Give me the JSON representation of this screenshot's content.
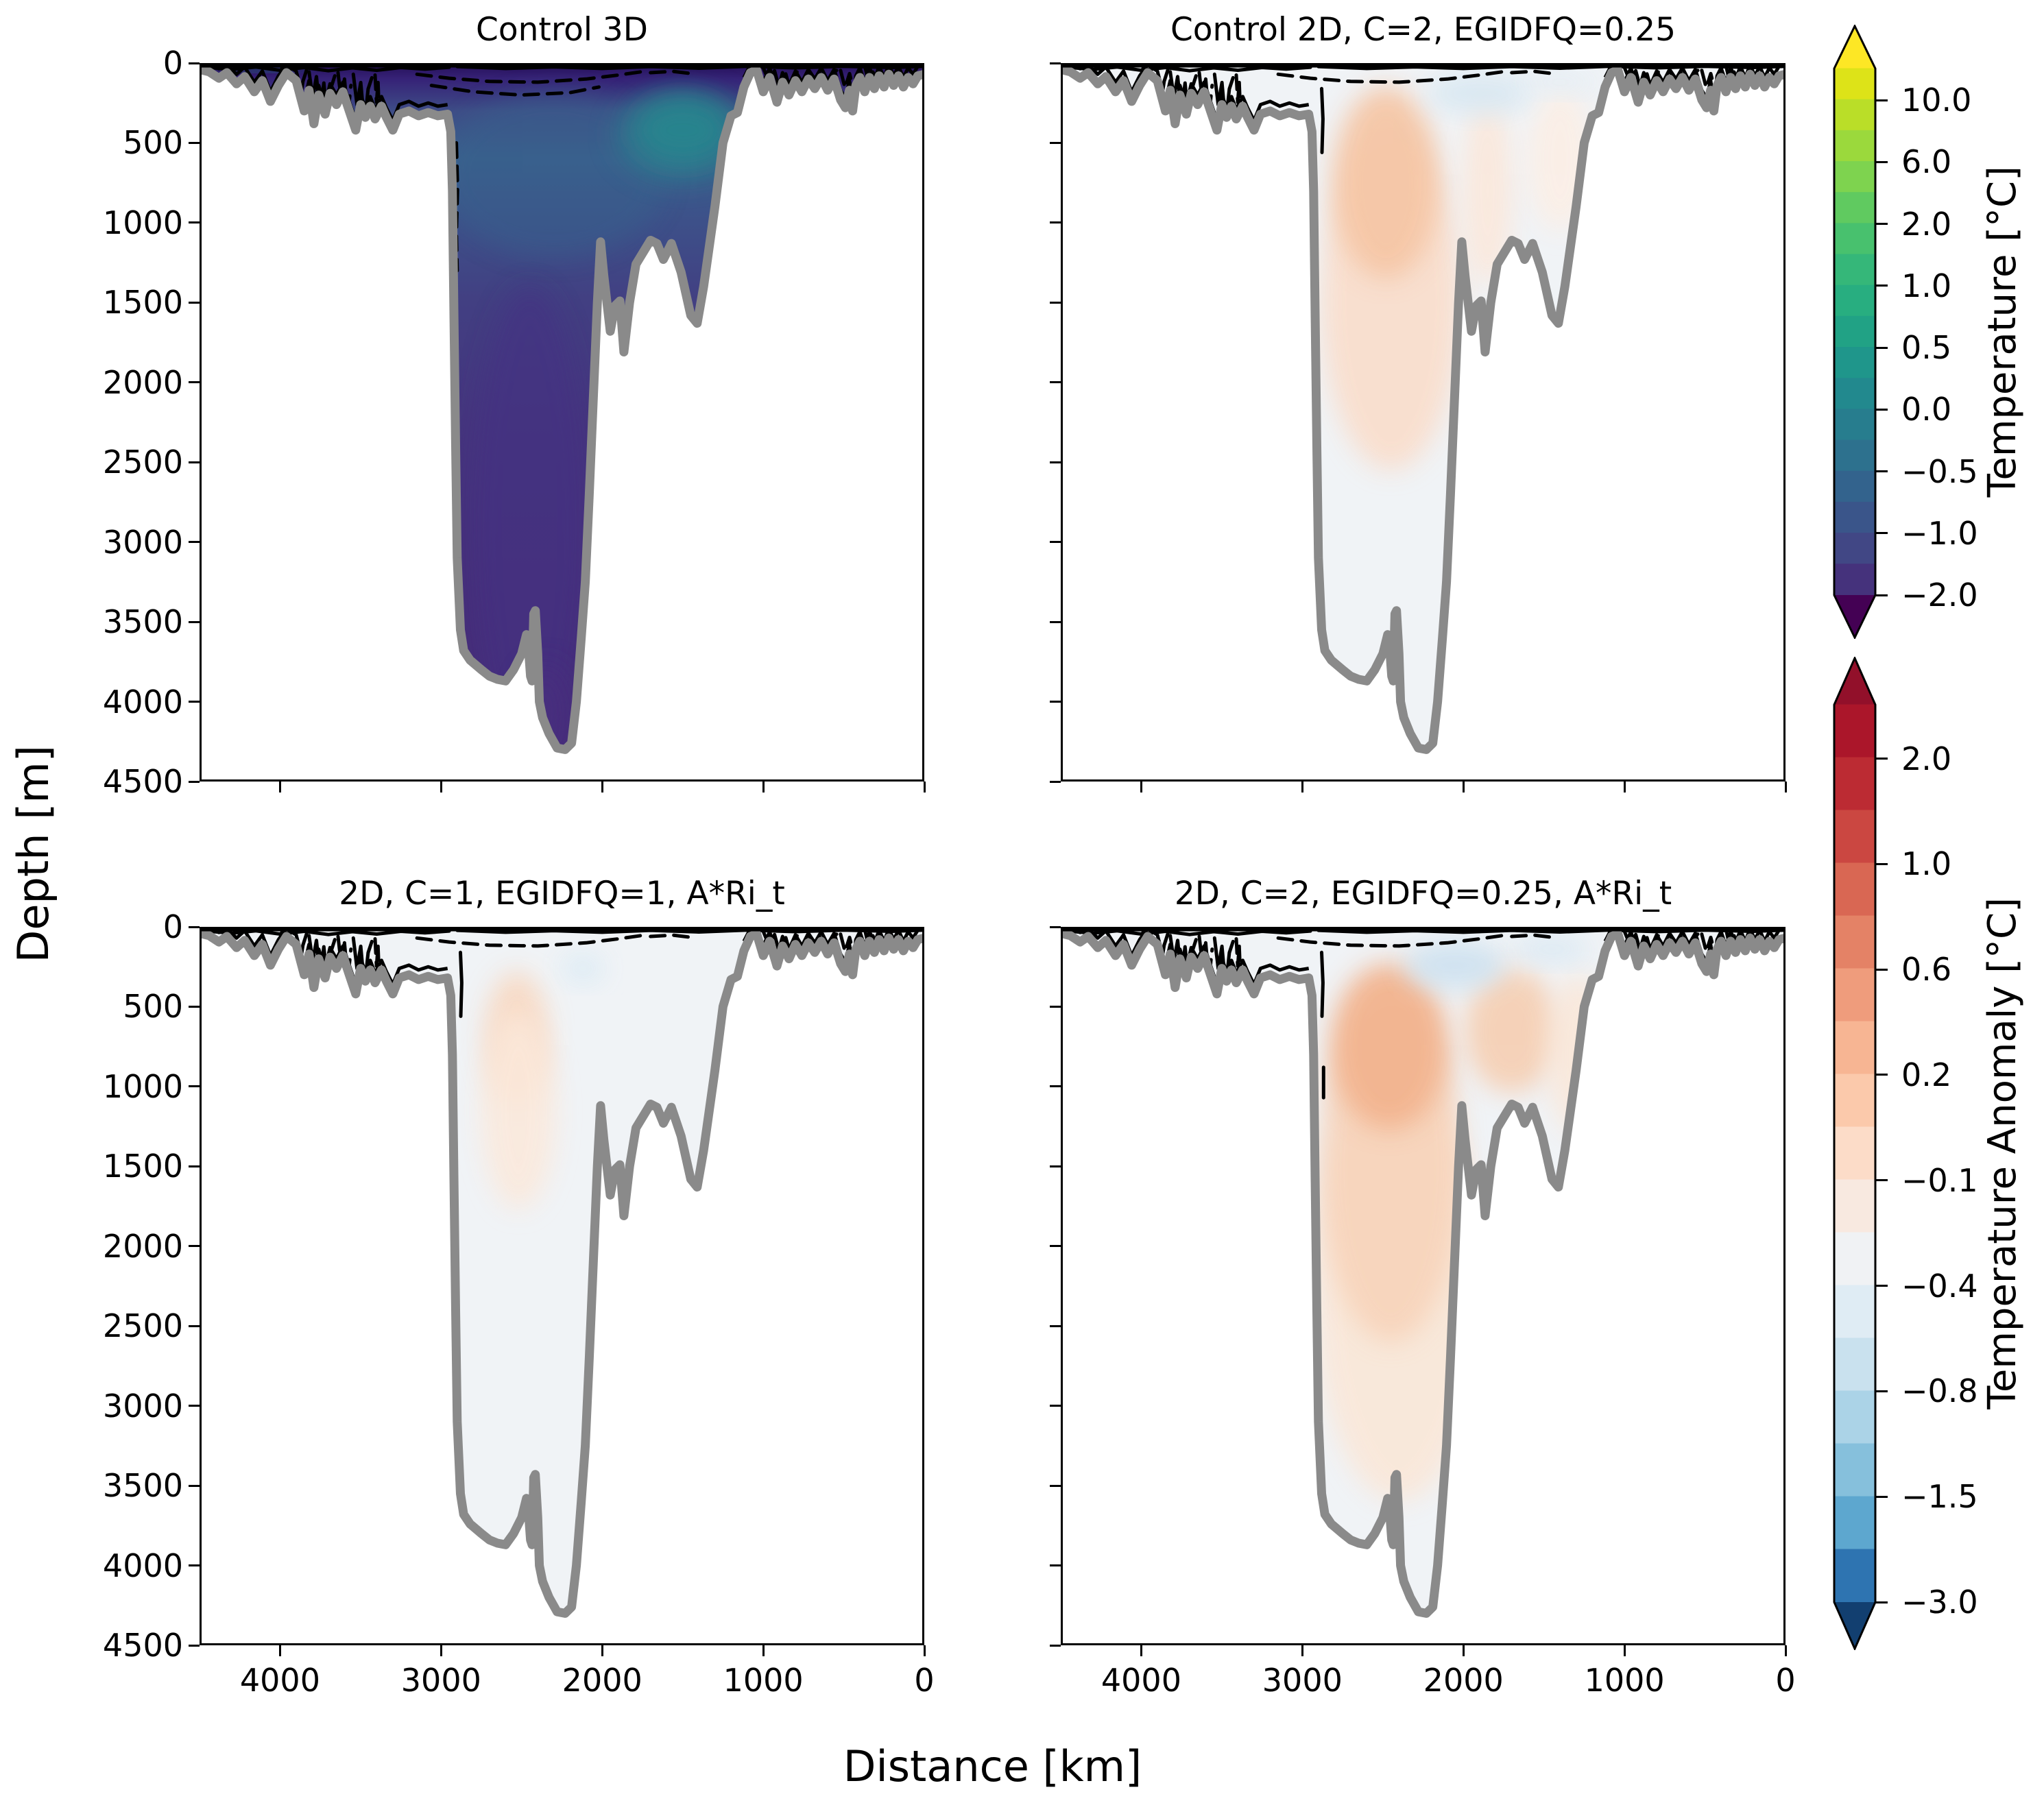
{
  "figure": {
    "background": "#ffffff"
  },
  "axes": {
    "xlabel": "Distance [km]",
    "ylabel": "Depth [m]",
    "x_ticks": [
      "4000",
      "3000",
      "2000",
      "1000",
      "0"
    ],
    "x_tick_values": [
      4000,
      3000,
      2000,
      1000,
      0
    ],
    "x_range_km": [
      4500,
      0
    ],
    "y_ticks": [
      "0",
      "500",
      "1000",
      "1500",
      "2000",
      "2500",
      "3000",
      "3500",
      "4000",
      "4500"
    ],
    "y_tick_values": [
      0,
      500,
      1000,
      1500,
      2000,
      2500,
      3000,
      3500,
      4000,
      4500
    ],
    "y_range_m": [
      0,
      4500
    ]
  },
  "panels": [
    {
      "title": "Control 3D",
      "field": "temperature",
      "colorbar": "Temperature [°C]"
    },
    {
      "title": "Control 2D, C=2, EGIDFQ=0.25",
      "field": "temperature_anomaly",
      "colorbar": "Temperature Anomaly [°C]"
    },
    {
      "title": "2D, C=1, EGIDFQ=1, A*Ri_t",
      "field": "temperature_anomaly",
      "colorbar": "Temperature Anomaly [°C]"
    },
    {
      "title": "2D, C=2, EGIDFQ=0.25, A*Ri_t",
      "field": "temperature_anomaly",
      "colorbar": "Temperature Anomaly [°C]"
    }
  ],
  "colorbars": [
    {
      "label": "Temperature [°C]",
      "ticks": [
        "10.0",
        "6.0",
        "2.0",
        "1.0",
        "0.5",
        "0.0",
        "−0.5",
        "−1.0",
        "−2.0"
      ],
      "tick_values": [
        10.0,
        6.0,
        2.0,
        1.0,
        0.5,
        0.0,
        -0.5,
        -1.0,
        -2.0
      ],
      "colormap": "viridis",
      "extend": "both",
      "over_color": "#fde725",
      "under_color": "#440154",
      "band_colors": [
        "#dde318",
        "#bade28",
        "#9bd93c",
        "#7ed34f",
        "#60ca60",
        "#48c16e",
        "#35b779",
        "#28ae80",
        "#21a285",
        "#1f968b",
        "#22898e",
        "#277d8e",
        "#2d718e",
        "#33638d",
        "#3a558a",
        "#414785",
        "#45327c"
      ]
    },
    {
      "label": "Temperature Anomaly [°C]",
      "ticks": [
        "2.0",
        "1.0",
        "0.6",
        "0.2",
        "−0.1",
        "−0.4",
        "−0.8",
        "−1.5",
        "−3.0"
      ],
      "tick_values": [
        2.0,
        1.0,
        0.6,
        0.2,
        -0.1,
        -0.4,
        -0.8,
        -1.5,
        -3.0
      ],
      "colormap": "RdBu_r",
      "extend": "both",
      "over_color": "#92102a",
      "under_color": "#123f70",
      "band_colors": [
        "#ab162a",
        "#bc2b33",
        "#cb4741",
        "#d96753",
        "#e48266",
        "#ef9c7c",
        "#f7b593",
        "#fbc9ab",
        "#fcdcc8",
        "#f8e9e0",
        "#f0f2f4",
        "#dfecf4",
        "#c9e1ee",
        "#abd3e7",
        "#86c0dc",
        "#5da7cf",
        "#2e74b1"
      ]
    }
  ],
  "styles": {
    "bathymetry_color": "#8a8a8a",
    "contour_color": "#000000",
    "seafloor_fill": "#ffffff",
    "anomaly_bg": "#f0f3f6",
    "spine_color": "#000000"
  },
  "chart_data": {
    "type": "heatmap",
    "subtype": "filled_contour_ocean_sections",
    "layout": "2x2 panels sharing Depth (y, 0-4500 m, increasing downward) and Distance (x, 4500-0 km, decreasing rightward); two discrete colorbars with extend arrows on the right",
    "x_axis": {
      "label": "Distance [km]",
      "range": [
        4500,
        0
      ],
      "ticks": [
        4000,
        3000,
        2000,
        1000,
        0
      ]
    },
    "y_axis": {
      "label": "Depth [m]",
      "range": [
        0,
        4500
      ],
      "ticks": [
        0,
        500,
        1000,
        1500,
        2000,
        2500,
        3000,
        3500,
        4000,
        4500
      ]
    },
    "colorbar_levels": {
      "temperature_c": [
        -2.0,
        -1.0,
        -0.5,
        0.0,
        0.5,
        1.0,
        2.0,
        6.0,
        10.0
      ],
      "temperature_anomaly_c": [
        -3.0,
        -1.5,
        -0.8,
        -0.4,
        -0.1,
        0.2,
        0.6,
        1.0,
        2.0
      ]
    },
    "panel_summaries": [
      {
        "title": "Control 3D",
        "field": "temperature",
        "summary": "Basin filled with cold water: near-surface band < -1 °C (dark purple), interior -1 to 0 °C (blue), warmer tongue ~0.5-1 °C (teal) near 1200-1900 km at 200-650 m; deep basin below 1000 m about -0.5 to -1 °C."
      },
      {
        "title": "Control 2D, C=2, EGIDFQ=0.25",
        "field": "temperature_anomaly",
        "summary": "Warm anomaly column +0.2 to +0.4 °C near 2100-2700 km from ~200 m to ~2200 m; weaker +0.2 column near 1800-1950 km; cool patch -0.1 to -0.2 °C near surface around 1600-2250 km; elsewhere near zero."
      },
      {
        "title": "2D, C=1, EGIDFQ=1, A*Ri_t",
        "field": "temperature_anomaly",
        "summary": "Anomalies mostly within ±0.1 °C; faint warm blob ~ +0.2 °C near 2350-2700 km at 300-1700 m; tiny cool patch near 2100 km at ~250 m."
      },
      {
        "title": "2D, C=2, EGIDFQ=0.25, A*Ri_t",
        "field": "temperature_anomaly",
        "summary": "Strongest warm anomaly +0.2 to +0.6 °C near 2100-2800 km from ~200 m to ~2800 m; secondary warm region near 1400-1950 km at 300-1300 m; cool patch -0.1 to -0.4 °C near surface around 1750-2350 km."
      }
    ],
    "contour_note": "Black solid and dashed contour lines cluster in the upper ~400 m (shelf regions and a long dashed contour arching across 1700-3200 km); thick gray line is the bathymetry.",
    "bathymetry_profile_km_m": [
      [
        4500,
        40
      ],
      [
        4440,
        55
      ],
      [
        4380,
        95
      ],
      [
        4330,
        60
      ],
      [
        4270,
        130
      ],
      [
        4220,
        85
      ],
      [
        4160,
        180
      ],
      [
        4110,
        110
      ],
      [
        4060,
        240
      ],
      [
        4010,
        140
      ],
      [
        3960,
        60
      ],
      [
        3900,
        110
      ],
      [
        3850,
        300
      ],
      [
        3820,
        170
      ],
      [
        3790,
        380
      ],
      [
        3760,
        200
      ],
      [
        3720,
        320
      ],
      [
        3690,
        190
      ],
      [
        3650,
        260
      ],
      [
        3610,
        180
      ],
      [
        3570,
        300
      ],
      [
        3530,
        420
      ],
      [
        3500,
        260
      ],
      [
        3470,
        340
      ],
      [
        3440,
        270
      ],
      [
        3410,
        350
      ],
      [
        3370,
        270
      ],
      [
        3340,
        340
      ],
      [
        3300,
        420
      ],
      [
        3260,
        320
      ],
      [
        3200,
        300
      ],
      [
        3140,
        330
      ],
      [
        3080,
        310
      ],
      [
        3020,
        330
      ],
      [
        2960,
        320
      ],
      [
        2940,
        430
      ],
      [
        2930,
        800
      ],
      [
        2920,
        1600
      ],
      [
        2910,
        2400
      ],
      [
        2900,
        3100
      ],
      [
        2880,
        3550
      ],
      [
        2860,
        3680
      ],
      [
        2820,
        3740
      ],
      [
        2750,
        3800
      ],
      [
        2700,
        3840
      ],
      [
        2650,
        3860
      ],
      [
        2600,
        3870
      ],
      [
        2550,
        3800
      ],
      [
        2500,
        3700
      ],
      [
        2470,
        3580
      ],
      [
        2455,
        3700
      ],
      [
        2445,
        3840
      ],
      [
        2435,
        3870
      ],
      [
        2425,
        3450
      ],
      [
        2415,
        3430
      ],
      [
        2400,
        3700
      ],
      [
        2390,
        4000
      ],
      [
        2370,
        4100
      ],
      [
        2330,
        4200
      ],
      [
        2280,
        4290
      ],
      [
        2230,
        4300
      ],
      [
        2190,
        4260
      ],
      [
        2160,
        4000
      ],
      [
        2130,
        3600
      ],
      [
        2105,
        3250
      ],
      [
        2080,
        2700
      ],
      [
        2055,
        2100
      ],
      [
        2030,
        1500
      ],
      [
        2010,
        1120
      ],
      [
        1990,
        1330
      ],
      [
        1950,
        1680
      ],
      [
        1920,
        1520
      ],
      [
        1890,
        1490
      ],
      [
        1865,
        1810
      ],
      [
        1830,
        1500
      ],
      [
        1790,
        1260
      ],
      [
        1700,
        1110
      ],
      [
        1660,
        1130
      ],
      [
        1620,
        1230
      ],
      [
        1570,
        1130
      ],
      [
        1510,
        1310
      ],
      [
        1450,
        1580
      ],
      [
        1410,
        1630
      ],
      [
        1370,
        1400
      ],
      [
        1300,
        900
      ],
      [
        1250,
        500
      ],
      [
        1200,
        330
      ],
      [
        1160,
        310
      ],
      [
        1120,
        150
      ],
      [
        1080,
        60
      ],
      [
        1040,
        45
      ],
      [
        1000,
        180
      ],
      [
        960,
        90
      ],
      [
        915,
        245
      ],
      [
        880,
        120
      ],
      [
        840,
        200
      ],
      [
        800,
        110
      ],
      [
        760,
        180
      ],
      [
        720,
        100
      ],
      [
        680,
        160
      ],
      [
        640,
        90
      ],
      [
        600,
        170
      ],
      [
        560,
        100
      ],
      [
        520,
        230
      ],
      [
        490,
        280
      ],
      [
        465,
        170
      ],
      [
        445,
        300
      ],
      [
        425,
        140
      ],
      [
        400,
        90
      ],
      [
        370,
        180
      ],
      [
        340,
        90
      ],
      [
        310,
        160
      ],
      [
        280,
        80
      ],
      [
        250,
        150
      ],
      [
        220,
        70
      ],
      [
        190,
        140
      ],
      [
        160,
        80
      ],
      [
        130,
        150
      ],
      [
        100,
        90
      ],
      [
        70,
        130
      ],
      [
        40,
        80
      ],
      [
        0,
        70
      ]
    ],
    "field_features": [
      [
        {
          "km": 4100,
          "d": 12,
          "rk": 260,
          "rd": 28,
          "color": "#21918c",
          "o": 0.85,
          "value_c": 0.5
        },
        {
          "km": 2300,
          "d": 700,
          "rk": 700,
          "rd": 520,
          "color": "#38648d",
          "o": 0.45,
          "value_c": 0.0
        },
        {
          "km": 1500,
          "d": 450,
          "rk": 430,
          "rd": 300,
          "color": "#2e7f8e",
          "o": 0.55,
          "value_c": 0.5
        },
        {
          "km": 1500,
          "d": 420,
          "rk": 300,
          "rd": 210,
          "color": "#27868e",
          "o": 0.9,
          "value_c": 0.8
        },
        {
          "km": 2450,
          "d": 2900,
          "rk": 360,
          "rd": 1500,
          "color": "#453083",
          "o": 0.6,
          "value_c": -0.8
        },
        {
          "km": 2350,
          "d": 4100,
          "rk": 180,
          "rd": 350,
          "color": "#4a2e7e",
          "o": 0.7,
          "value_c": -1.0
        }
      ],
      [
        {
          "km": 2450,
          "d": 1500,
          "rk": 430,
          "rd": 1050,
          "color": "#f9ddcb",
          "o": 0.9,
          "value_c": 0.2
        },
        {
          "km": 2480,
          "d": 750,
          "rk": 330,
          "rd": 600,
          "color": "#f5c6a6",
          "o": 0.95,
          "value_c": 0.4
        },
        {
          "km": 1850,
          "d": 800,
          "rk": 150,
          "rd": 600,
          "color": "#fbe7da",
          "o": 0.9,
          "value_c": 0.2
        },
        {
          "km": 1400,
          "d": 600,
          "rk": 200,
          "rd": 450,
          "color": "#fceee4",
          "o": 0.85,
          "value_c": 0.1
        },
        {
          "km": 1900,
          "d": 190,
          "rk": 330,
          "rd": 130,
          "color": "#d9e8f2",
          "o": 0.95,
          "value_c": -0.15
        },
        {
          "km": 1400,
          "d": 120,
          "rk": 220,
          "rd": 70,
          "color": "#e3edf5",
          "o": 0.9,
          "value_c": -0.1
        }
      ],
      [
        {
          "km": 2530,
          "d": 700,
          "rk": 200,
          "rd": 420,
          "color": "#f8d8c1",
          "o": 0.9,
          "value_c": 0.2
        },
        {
          "km": 2520,
          "d": 1150,
          "rk": 230,
          "rd": 620,
          "color": "#fbe8da",
          "o": 0.85,
          "value_c": 0.15
        },
        {
          "km": 2120,
          "d": 260,
          "rk": 140,
          "rd": 95,
          "color": "#dcebf4",
          "o": 0.9,
          "value_c": -0.1
        }
      ],
      [
        {
          "km": 2400,
          "d": 2300,
          "rk": 520,
          "rd": 1300,
          "color": "#fbe5d4",
          "o": 0.8,
          "value_c": 0.2
        },
        {
          "km": 2450,
          "d": 1500,
          "rk": 440,
          "rd": 1100,
          "color": "#f7d2b8",
          "o": 0.85,
          "value_c": 0.3
        },
        {
          "km": 2460,
          "d": 750,
          "rk": 360,
          "rd": 520,
          "color": "#f2b48f",
          "o": 0.95,
          "value_c": 0.5
        },
        {
          "km": 1700,
          "d": 650,
          "rk": 290,
          "rd": 390,
          "color": "#f6ccae",
          "o": 0.85,
          "value_c": 0.3
        },
        {
          "km": 1280,
          "d": 800,
          "rk": 200,
          "rd": 500,
          "color": "#fbe6d6",
          "o": 0.8,
          "value_c": 0.2
        },
        {
          "km": 2050,
          "d": 240,
          "rk": 310,
          "rd": 150,
          "color": "#cfe2f0",
          "o": 0.95,
          "value_c": -0.2
        },
        {
          "km": 1450,
          "d": 140,
          "rk": 230,
          "rd": 85,
          "color": "#d9e8f3",
          "o": 0.9,
          "value_c": -0.1
        }
      ]
    ]
  }
}
